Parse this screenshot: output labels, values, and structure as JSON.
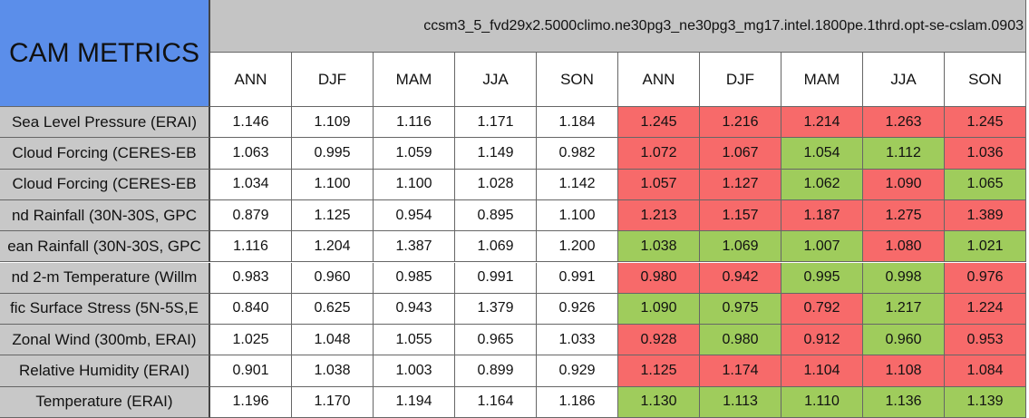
{
  "header": {
    "title": "CAM METRICS",
    "case": "ccsm3_5_fvd29x2.5000climo.ne30pg3_ne30pg3_mg17.intel.1800pe.1thrd.opt-se-cslam.0903",
    "seasons": [
      "ANN",
      "DJF",
      "MAM",
      "JJA",
      "SON",
      "ANN",
      "DJF",
      "MAM",
      "JJA",
      "SON"
    ]
  },
  "colors": {
    "red": "#f76a6a",
    "green": "#9fcc5c"
  },
  "rows": [
    {
      "label": "Sea Level Pressure (ERAI)",
      "values": [
        "1.146",
        "1.109",
        "1.116",
        "1.171",
        "1.184",
        "1.245",
        "1.216",
        "1.214",
        "1.263",
        "1.245"
      ],
      "shading": [
        "red",
        "red",
        "red",
        "red",
        "red"
      ]
    },
    {
      "label": "Cloud Forcing (CERES-EB",
      "values": [
        "1.063",
        "0.995",
        "1.059",
        "1.149",
        "0.982",
        "1.072",
        "1.067",
        "1.054",
        "1.112",
        "1.036"
      ],
      "shading": [
        "red",
        "red",
        "green",
        "green",
        "red"
      ]
    },
    {
      "label": "Cloud Forcing (CERES-EB",
      "values": [
        "1.034",
        "1.100",
        "1.100",
        "1.028",
        "1.142",
        "1.057",
        "1.127",
        "1.062",
        "1.090",
        "1.065"
      ],
      "shading": [
        "red",
        "red",
        "green",
        "red",
        "green"
      ]
    },
    {
      "label": "nd Rainfall (30N-30S, GPC",
      "values": [
        "0.879",
        "1.125",
        "0.954",
        "0.895",
        "1.100",
        "1.213",
        "1.157",
        "1.187",
        "1.275",
        "1.389"
      ],
      "shading": [
        "red",
        "red",
        "red",
        "red",
        "red"
      ]
    },
    {
      "label": "ean Rainfall (30N-30S, GPC",
      "values": [
        "1.116",
        "1.204",
        "1.387",
        "1.069",
        "1.200",
        "1.038",
        "1.069",
        "1.007",
        "1.080",
        "1.021"
      ],
      "shading": [
        "green",
        "green",
        "green",
        "red",
        "green"
      ]
    },
    {
      "label": "nd 2-m Temperature (Willm",
      "values": [
        "0.983",
        "0.960",
        "0.985",
        "0.991",
        "0.991",
        "0.980",
        "0.942",
        "0.995",
        "0.998",
        "0.976"
      ],
      "shading": [
        "red",
        "red",
        "green",
        "green",
        "red"
      ]
    },
    {
      "label": "fic Surface Stress (5N-5S,E",
      "values": [
        "0.840",
        "0.625",
        "0.943",
        "1.379",
        "0.926",
        "1.090",
        "0.975",
        "0.792",
        "1.217",
        "1.224"
      ],
      "shading": [
        "green",
        "green",
        "red",
        "green",
        "red"
      ]
    },
    {
      "label": "Zonal Wind (300mb, ERAI)",
      "values": [
        "1.025",
        "1.048",
        "1.055",
        "0.965",
        "1.033",
        "0.928",
        "0.980",
        "0.912",
        "0.960",
        "0.953"
      ],
      "shading": [
        "red",
        "green",
        "red",
        "green",
        "red"
      ]
    },
    {
      "label": "Relative Humidity (ERAI)",
      "values": [
        "0.901",
        "1.038",
        "1.003",
        "0.899",
        "0.929",
        "1.125",
        "1.174",
        "1.104",
        "1.108",
        "1.084"
      ],
      "shading": [
        "red",
        "red",
        "red",
        "red",
        "red"
      ]
    },
    {
      "label": "Temperature (ERAI)",
      "values": [
        "1.196",
        "1.170",
        "1.194",
        "1.164",
        "1.186",
        "1.130",
        "1.113",
        "1.110",
        "1.136",
        "1.139"
      ],
      "shading": [
        "green",
        "green",
        "green",
        "green",
        "green"
      ]
    }
  ]
}
